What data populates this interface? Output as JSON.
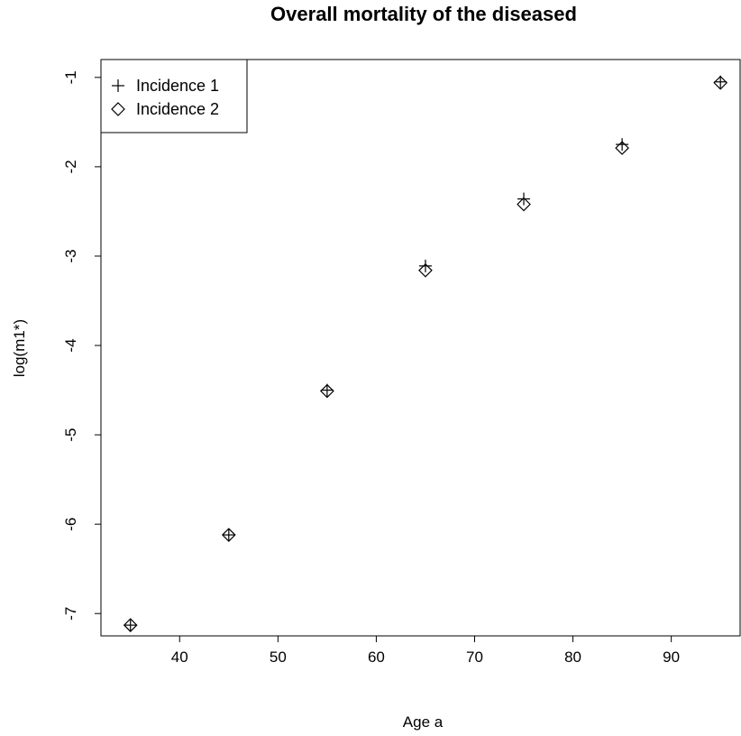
{
  "chart_data": {
    "type": "scatter",
    "title": "Overall mortality of the diseased",
    "xlabel": "Age a",
    "ylabel": "log(m1*)",
    "xlim": [
      32,
      97
    ],
    "ylim": [
      -7.25,
      -0.8
    ],
    "x_ticks": [
      40,
      50,
      60,
      70,
      80,
      90
    ],
    "y_ticks": [
      -7,
      -6,
      -5,
      -4,
      -3,
      -2,
      -1
    ],
    "grid": false,
    "legend_position": "top-left",
    "series": [
      {
        "name": "Incidence 1",
        "marker": "plus",
        "x": [
          35,
          45,
          55,
          65,
          75,
          85,
          95
        ],
        "y": [
          -7.13,
          -6.12,
          -4.5,
          -3.11,
          -2.36,
          -1.75,
          -1.05
        ]
      },
      {
        "name": "Incidence 2",
        "marker": "diamond",
        "x": [
          35,
          45,
          55,
          65,
          75,
          85,
          95
        ],
        "y": [
          -7.13,
          -6.12,
          -4.51,
          -3.16,
          -2.42,
          -1.79,
          -1.06
        ]
      }
    ]
  }
}
